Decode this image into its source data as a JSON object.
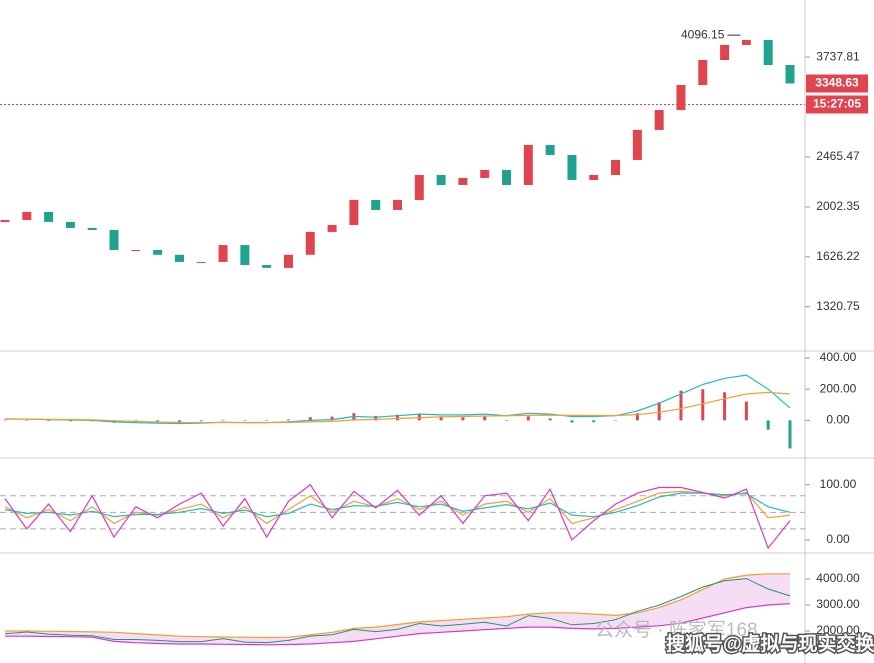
{
  "chart_data": [
    {
      "type": "candlestick",
      "log_scale": true,
      "ylim": [
        1103,
        4742
      ],
      "yticks": [
        3737.81,
        2465.47,
        2002.35,
        1626.22,
        1320.75
      ],
      "up_color": "#e0454f",
      "down_color": "#1fa38f",
      "first_open": 1880,
      "close": [
        1896,
        1961,
        1881,
        1834,
        1819,
        1673,
        1673,
        1640,
        1592,
        1592,
        1708,
        1572,
        1553,
        1640,
        1804,
        1857,
        2061,
        1977,
        2061,
        2287,
        2194,
        2259,
        2335,
        2194,
        2592,
        2486,
        2240,
        2287,
        2435,
        2759,
        2998,
        3328,
        3693,
        3932,
        4014,
        3617,
        3348.63
      ],
      "annotation": {
        "text": "4096.15",
        "value": 4096.15
      },
      "last_price": 3348.63,
      "last_time": "15:27:05"
    },
    {
      "type": "combo",
      "ylim": [
        -235,
        432
      ],
      "yticks": [
        {
          "value": 400,
          "label": "400.00"
        },
        {
          "value": 200,
          "label": "200.00"
        },
        {
          "value": 0,
          "label": "0.00"
        }
      ],
      "series": [
        {
          "kind": "bar",
          "up_color": "#e0454f",
          "down_color": "#1fa38f",
          "values": [
            4,
            0,
            -4,
            -6,
            -6,
            -16,
            -16,
            -14,
            -12,
            -6,
            4,
            -2,
            -2,
            6,
            20,
            24,
            46,
            28,
            36,
            44,
            26,
            20,
            24,
            2,
            26,
            12,
            -14,
            -12,
            -2,
            46,
            116,
            190,
            200,
            180,
            120,
            -60,
            -180
          ]
        },
        {
          "kind": "line",
          "color": "#26b8c9",
          "values": [
            10,
            8,
            5,
            2,
            0,
            -10,
            -15,
            -18,
            -20,
            -18,
            -12,
            -15,
            -15,
            -10,
            0,
            5,
            25,
            20,
            30,
            40,
            35,
            35,
            40,
            30,
            45,
            40,
            25,
            25,
            30,
            60,
            110,
            170,
            230,
            270,
            290,
            200,
            80
          ]
        },
        {
          "kind": "line",
          "color": "#f0a030",
          "values": [
            8,
            8,
            7,
            5,
            3,
            -2,
            -7,
            -11,
            -14,
            -15,
            -14,
            -14,
            -14,
            -13,
            -10,
            -7,
            2,
            6,
            12,
            18,
            22,
            25,
            28,
            29,
            32,
            34,
            32,
            31,
            31,
            37,
            52,
            75,
            106,
            139,
            169,
            179,
            169
          ]
        }
      ]
    },
    {
      "type": "line",
      "ylim": [
        -22,
        145
      ],
      "yticks": [
        {
          "value": 100,
          "label": "100.00"
        },
        {
          "value": 0,
          "label": "0.00"
        }
      ],
      "levels": [
        80,
        50,
        20
      ],
      "series": [
        {
          "color": "#f0a030",
          "values": [
            60,
            40,
            55,
            35,
            60,
            30,
            50,
            45,
            55,
            65,
            40,
            60,
            30,
            55,
            80,
            50,
            70,
            60,
            75,
            55,
            70,
            45,
            65,
            70,
            50,
            75,
            30,
            40,
            55,
            70,
            85,
            88,
            85,
            80,
            86,
            40,
            45
          ]
        },
        {
          "color": "#26b8c9",
          "values": [
            55,
            48,
            50,
            45,
            52,
            42,
            46,
            46,
            50,
            57,
            48,
            54,
            42,
            48,
            65,
            55,
            62,
            61,
            68,
            60,
            65,
            52,
            58,
            64,
            56,
            67,
            45,
            42,
            50,
            62,
            78,
            85,
            85,
            82,
            84,
            60,
            50
          ]
        },
        {
          "color": "#d43ac8",
          "values": [
            75,
            20,
            65,
            15,
            80,
            5,
            60,
            40,
            65,
            85,
            25,
            75,
            5,
            70,
            100,
            40,
            88,
            58,
            90,
            45,
            80,
            30,
            80,
            85,
            35,
            92,
            0,
            35,
            65,
            85,
            95,
            95,
            86,
            76,
            92,
            -15,
            35
          ]
        }
      ]
    },
    {
      "type": "band",
      "ylim": [
        808,
        4885
      ],
      "yticks": [
        {
          "value": 4000,
          "label": "4000.00"
        },
        {
          "value": 3000,
          "label": "3000.00"
        },
        {
          "value": 2000,
          "label": "2000.00"
        }
      ],
      "fill": "#f3d6f0",
      "series": [
        {
          "color": "#f0a030",
          "values": [
            2000,
            2000,
            1990,
            1980,
            1970,
            1950,
            1900,
            1850,
            1800,
            1780,
            1770,
            1760,
            1750,
            1760,
            1850,
            1950,
            2100,
            2150,
            2250,
            2350,
            2400,
            2450,
            2500,
            2550,
            2650,
            2700,
            2700,
            2650,
            2600,
            2700,
            2900,
            3200,
            3600,
            4000,
            4150,
            4200,
            4200
          ]
        },
        {
          "color": "#d43ac8",
          "values": [
            1800,
            1800,
            1790,
            1780,
            1760,
            1600,
            1550,
            1520,
            1500,
            1500,
            1490,
            1480,
            1470,
            1480,
            1500,
            1550,
            1600,
            1700,
            1800,
            1900,
            1950,
            2000,
            2050,
            2100,
            2150,
            2150,
            2100,
            2080,
            2100,
            2150,
            2200,
            2300,
            2500,
            2700,
            2900,
            3000,
            3050
          ]
        }
      ]
    }
  ],
  "watermarks": [
    "公众号 · 陈家军168",
    "搜狐号@虚拟与现实交换"
  ]
}
